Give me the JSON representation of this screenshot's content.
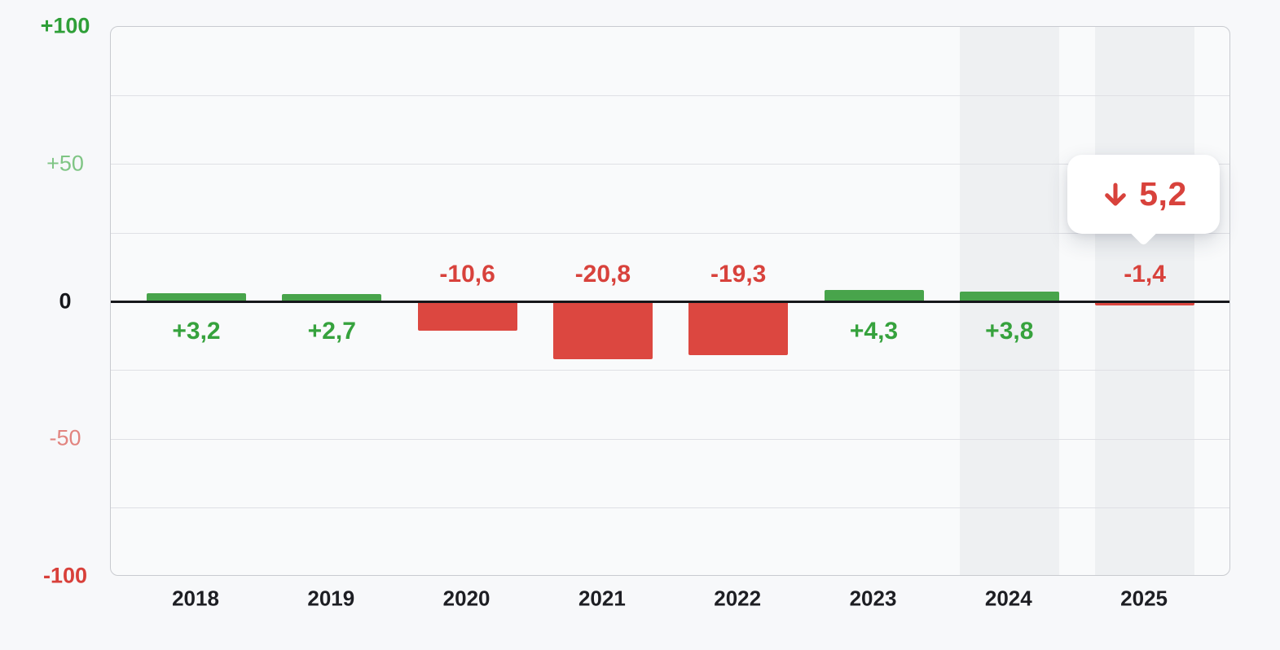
{
  "chart_data": {
    "type": "bar",
    "title": "",
    "categories": [
      "2018",
      "2019",
      "2020",
      "2021",
      "2022",
      "2023",
      "2024",
      "2025"
    ],
    "values": [
      3.2,
      2.7,
      -10.6,
      -20.8,
      -19.3,
      4.3,
      3.8,
      -1.4
    ],
    "bar_labels": [
      "+3,2",
      "+2,7",
      "-10,6",
      "-20,8",
      "-19,3",
      "+4,3",
      "+3,8",
      "-1,4"
    ],
    "highlighted_categories": [
      "2024",
      "2025"
    ],
    "y_axis": {
      "range": [
        -100,
        100
      ],
      "grid_step": 25,
      "ticks": [
        {
          "value": 100,
          "label": "+100",
          "weight": "bold",
          "color": "#2f9f38"
        },
        {
          "value": 50,
          "label": "+50",
          "weight": "normal",
          "color": "#7fc584"
        },
        {
          "value": 0,
          "label": "0",
          "weight": "bold",
          "color": "#16171b"
        },
        {
          "value": -50,
          "label": "-50",
          "weight": "normal",
          "color": "#e2847f"
        },
        {
          "value": -100,
          "label": "-100",
          "weight": "bold",
          "color": "#d8403a"
        }
      ]
    },
    "grid": true,
    "legend": false,
    "tooltip": {
      "target": "2025",
      "icon": "arrow-down",
      "value": "5,2"
    }
  },
  "colors": {
    "positive_bar": "#48a44b",
    "negative_bar": "#dc4740",
    "positive_label": "#36a23d",
    "negative_label": "#d8423c",
    "year_label": "#1d1e23",
    "band": "#eef0f2",
    "grid_line": "#dfe0e5",
    "zero_line": "#16171b",
    "tooltip_text": "#d8423c"
  }
}
